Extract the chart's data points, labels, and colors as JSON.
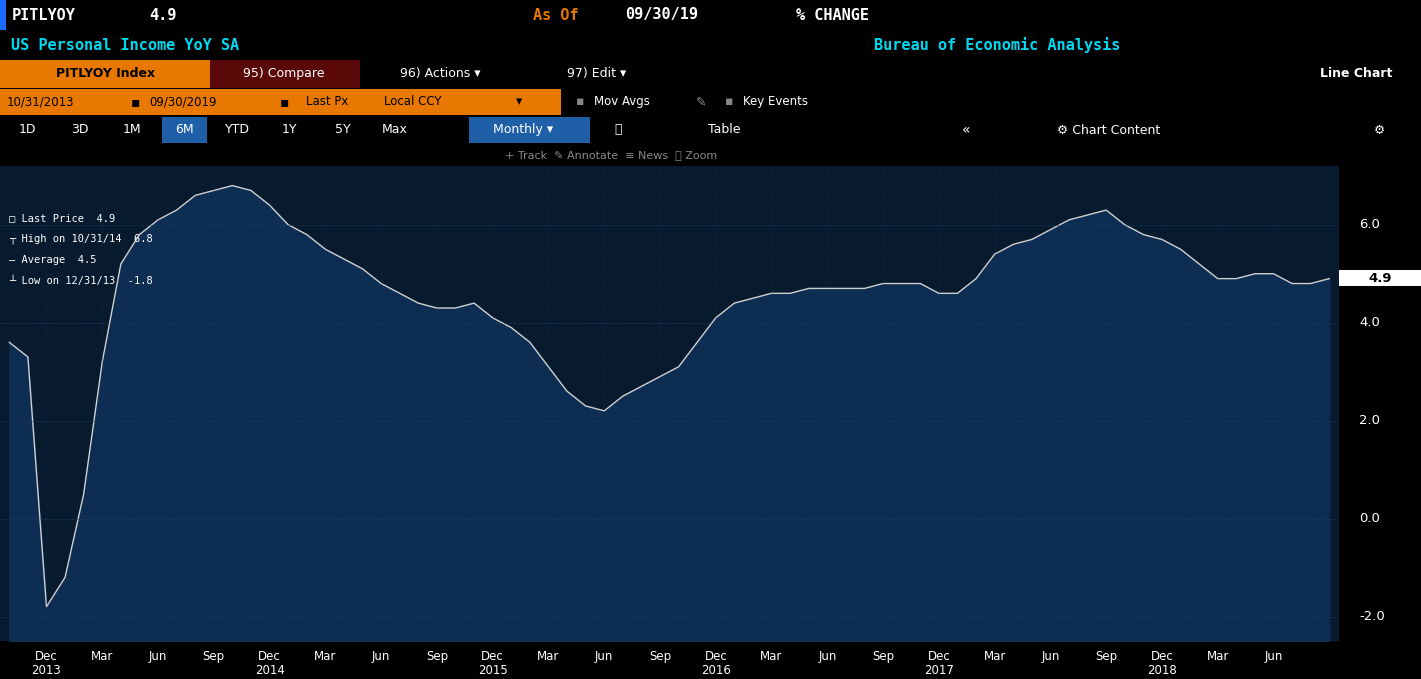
{
  "bg_color": "#000000",
  "chart_bg_color": "#071a2e",
  "line_color": "#d0d0d0",
  "fill_color": "#0d2d52",
  "grid_color_h": "#1e3f60",
  "grid_color_v": "#1e3f60",
  "axis_label_color": "#ffffff",
  "last_value": 4.9,
  "high_value": 6.8,
  "high_date": "10/31/14",
  "average": 4.5,
  "low_value": -1.8,
  "low_date": "12/31/13",
  "ylim": [
    -2.5,
    7.2
  ],
  "yticks": [
    -2.0,
    0.0,
    2.0,
    4.0,
    6.0
  ],
  "values": [
    3.6,
    3.3,
    -1.8,
    -1.2,
    0.5,
    3.2,
    5.2,
    5.8,
    6.1,
    6.3,
    6.6,
    6.7,
    6.8,
    6.7,
    6.4,
    6.0,
    5.8,
    5.5,
    5.3,
    5.1,
    4.8,
    4.6,
    4.4,
    4.3,
    4.3,
    4.4,
    4.1,
    3.9,
    3.6,
    3.1,
    2.6,
    2.3,
    2.2,
    2.5,
    2.7,
    2.9,
    3.1,
    3.6,
    4.1,
    4.4,
    4.5,
    4.6,
    4.6,
    4.7,
    4.7,
    4.7,
    4.7,
    4.8,
    4.8,
    4.8,
    4.6,
    4.6,
    4.9,
    5.4,
    5.6,
    5.7,
    5.9,
    6.1,
    6.2,
    6.3,
    6.0,
    5.8,
    5.7,
    5.5,
    5.2,
    4.9,
    4.9,
    5.0,
    5.0,
    4.8,
    4.8,
    4.9
  ],
  "x_tick_positions": [
    2,
    5,
    8,
    11,
    14,
    17,
    20,
    23,
    26,
    29,
    32,
    35,
    38,
    41,
    44,
    47,
    50,
    53,
    56,
    59,
    62,
    65,
    68
  ],
  "x_tick_labels": [
    "Dec\n2013",
    "Mar",
    "Jun",
    "Sep",
    "Dec\n2014",
    "Mar",
    "Jun",
    "Sep",
    "Dec\n2015",
    "Mar",
    "Jun",
    "Sep",
    "Dec\n2016",
    "Mar",
    "Jun",
    "Sep",
    "Dec\n2017",
    "Mar",
    "Jun",
    "Sep",
    "Dec\n2018",
    "Mar",
    "Jun"
  ],
  "header1_bg": "#000000",
  "header2_bg": "#000000",
  "toolbar_bg": "#7a0a0a",
  "period_bg": "#000000",
  "nav_bg": "#000000",
  "track_bg": "#0a0a0a",
  "orange_btn": "#e87800",
  "blue_btn": "#1e5fa8",
  "cyan_text": "#00d8f0",
  "orange_text": "#e87800",
  "white_text": "#ffffff",
  "grey_bg": "#1a1a1a"
}
